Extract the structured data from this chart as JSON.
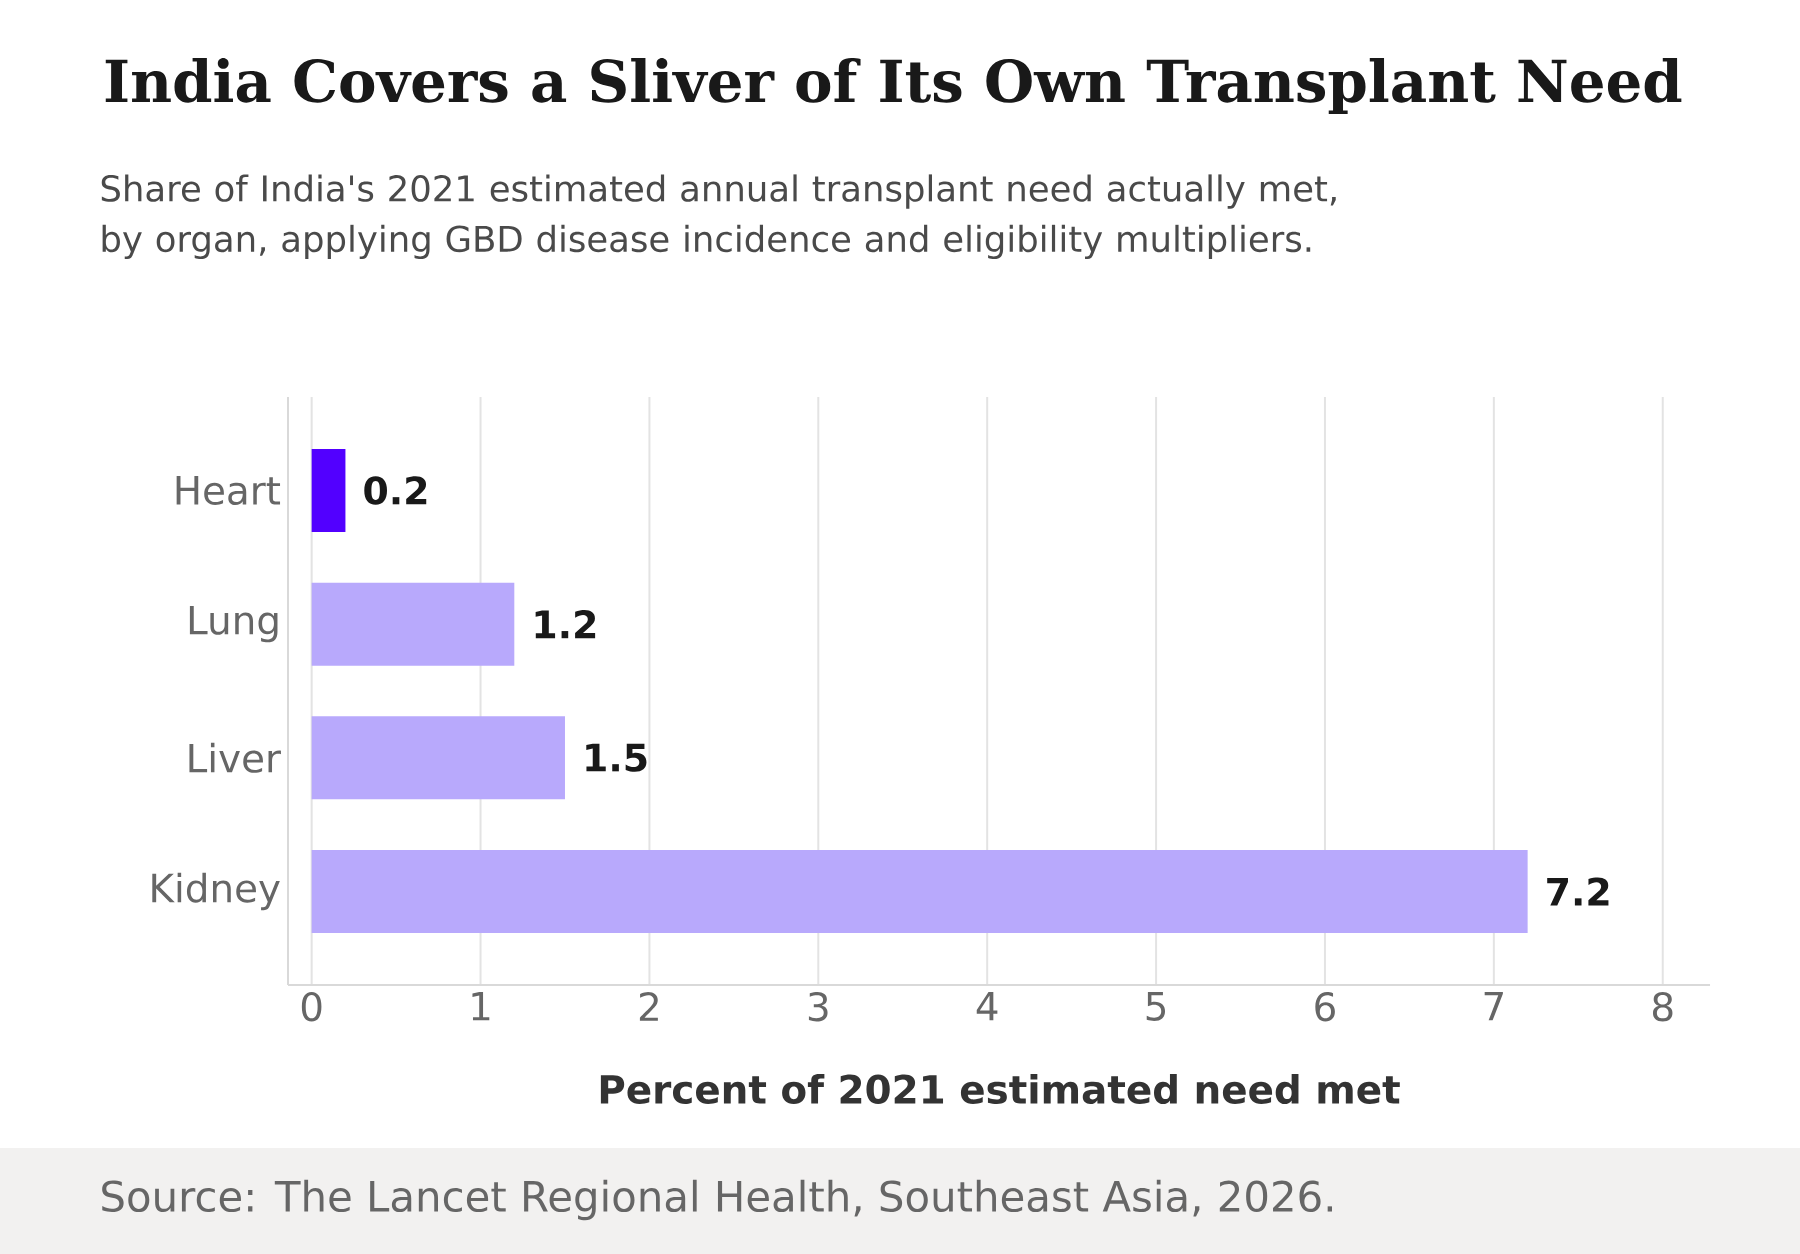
{
  "chart_data": {
    "type": "bar",
    "orientation": "horizontal",
    "title": "India Covers a Sliver of Its Own Transplant Need",
    "subtitle": "Share of India's 2021 estimated annual transplant need actually met, by organ, applying GBD disease incidence and eligibility multipliers.",
    "xlabel": "Percent of 2021 estimated need met",
    "categories": [
      "Heart",
      "Lung",
      "Liver",
      "Kidney"
    ],
    "values": [
      0.2,
      1.2,
      1.5,
      7.2
    ],
    "colors": [
      "#5200ff",
      "#b8a9fc",
      "#b8a9fc",
      "#b8a9fc"
    ],
    "xlim": [
      -0.14,
      8.28
    ],
    "xticks": [
      0,
      1,
      2,
      3,
      4,
      5,
      6,
      7,
      8
    ],
    "grid": "x",
    "data_labels": true,
    "annotations": [
      "Source: The Lancet Regional Health, Southeast Asia, 2026."
    ]
  }
}
